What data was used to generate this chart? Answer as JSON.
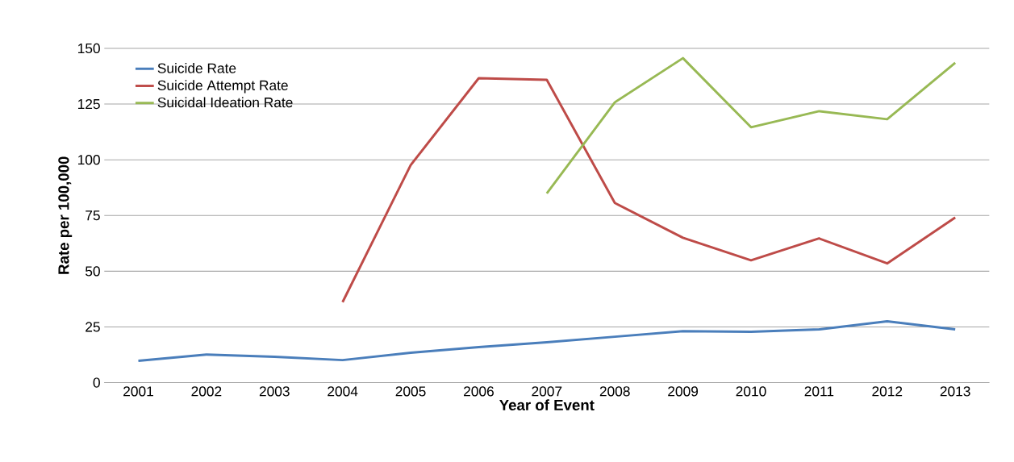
{
  "chart_data": {
    "type": "line",
    "xlabel": "Year of Event",
    "ylabel": "Rate per 100,000",
    "categories": [
      "2001",
      "2002",
      "2003",
      "2004",
      "2005",
      "2006",
      "2007",
      "2008",
      "2009",
      "2010",
      "2011",
      "2012",
      "2013"
    ],
    "series": [
      {
        "name": "Suicide Rate",
        "color": "#4a7ebb",
        "values": [
          9.8,
          12.6,
          11.6,
          10.1,
          13.4,
          15.9,
          18.1,
          20.6,
          23.1,
          22.8,
          23.9,
          27.5,
          23.9
        ]
      },
      {
        "name": "Suicide Attempt Rate",
        "color": "#be4b48",
        "values": [
          null,
          null,
          null,
          36.1,
          97.6,
          136.6,
          135.9,
          80.6,
          65.0,
          54.9,
          64.7,
          53.5,
          74.1
        ]
      },
      {
        "name": "Suicidal Ideation Rate",
        "color": "#98b954",
        "values": [
          null,
          null,
          null,
          null,
          null,
          null,
          84.9,
          125.8,
          145.6,
          114.6,
          121.8,
          118.2,
          143.5
        ]
      }
    ],
    "ylim": [
      0,
      150
    ],
    "yticks": [
      0,
      25,
      50,
      75,
      100,
      125,
      150
    ],
    "grid": "y",
    "legend": "top left",
    "marker": "none",
    "line_style": "solid"
  }
}
